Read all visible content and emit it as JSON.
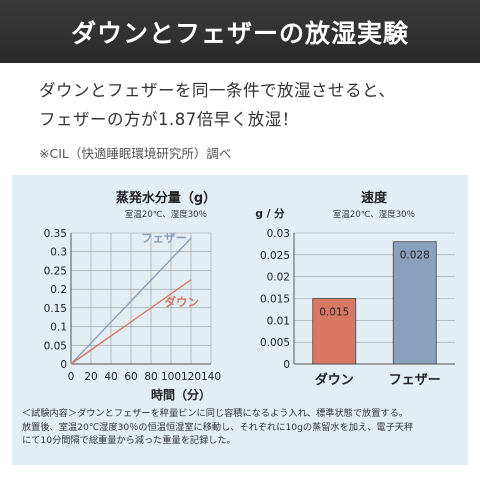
{
  "header": {
    "title": "ダウンとフェザーの放湿実験"
  },
  "lead": {
    "line1": "ダウンとフェザーを同一条件で放湿させると、",
    "line2": "フェザーの方が1.87倍早く放湿！"
  },
  "source": "※CIL（快適睡眠環境研究所）調べ",
  "note": {
    "line1": "＜試験内容＞ダウンとフェザーを秤量ビンに同じ容積になるよう入れ、標準状態で放置する。",
    "line2": "放置後、室温20℃湿度30％の恒温恒湿室に移動し、それぞれに10gの蒸留水を加え、電子天秤",
    "line3": "にて10分間隔で総重量から減った重量を記録した。"
  },
  "colors": {
    "feather": "#8ba0bd",
    "down": "#d87864",
    "chart_bg": "#e2eef4"
  },
  "chart_data": [
    {
      "type": "line",
      "title": "蒸発水分量（g）",
      "subtitle": "室温20℃、湿度30％",
      "xlabel": "時間（分）",
      "ylabel": "",
      "x_ticks": [
        0,
        20,
        40,
        60,
        80,
        100,
        120,
        140
      ],
      "y_ticks": [
        0,
        0.05,
        0.1,
        0.15,
        0.2,
        0.25,
        0.3,
        0.35
      ],
      "y_tick_labels": [
        "0",
        "0.05",
        "0.1",
        "0.15",
        "0.2",
        "0.25",
        "0.3",
        "0.35"
      ],
      "xlim": [
        0,
        140
      ],
      "ylim": [
        0,
        0.35
      ],
      "grid": true,
      "series": [
        {
          "name": "フェザー",
          "x": [
            0,
            120
          ],
          "y": [
            0,
            0.336
          ]
        },
        {
          "name": "ダウン",
          "x": [
            0,
            120
          ],
          "y": [
            0,
            0.225
          ]
        }
      ]
    },
    {
      "type": "bar",
      "title": "速度",
      "subtitle": "室温20℃、湿度30％",
      "ylabel": "g / 分",
      "categories": [
        "ダウン",
        "フェザー"
      ],
      "values": [
        0.015,
        0.028
      ],
      "value_labels": [
        "0.015",
        "0.028"
      ],
      "y_ticks": [
        0,
        0.005,
        0.01,
        0.015,
        0.02,
        0.025,
        0.03
      ],
      "y_tick_labels": [
        "0",
        "0.005",
        "0.01",
        "0.015",
        "0.02",
        "0.025",
        "0.03"
      ],
      "ylim": [
        0,
        0.03
      ],
      "grid": true
    }
  ]
}
